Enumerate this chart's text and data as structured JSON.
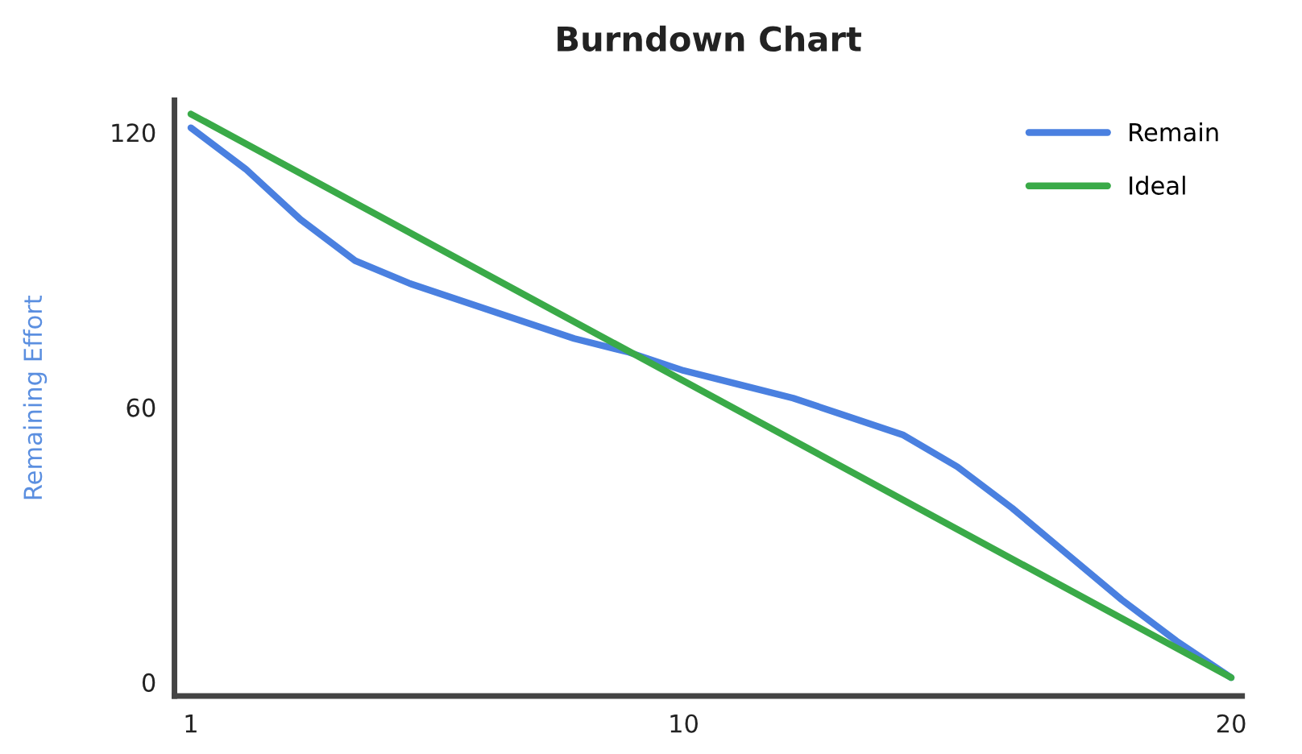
{
  "chart_data": {
    "type": "line",
    "title": "Burndown Chart",
    "ylabel": "Remaining Effort",
    "x": [
      1,
      2,
      3,
      4,
      5,
      6,
      7,
      8,
      9,
      10,
      11,
      12,
      13,
      14,
      15,
      16,
      17,
      18,
      19,
      20
    ],
    "series": [
      {
        "name": "Remain",
        "color": "#4a80e0",
        "values": [
          121,
          112,
          101,
          92,
          87,
          83,
          79,
          75,
          72,
          68,
          65,
          62,
          58,
          54,
          47,
          38,
          28,
          18,
          9,
          1
        ]
      },
      {
        "name": "Ideal",
        "color": "#3aaa48",
        "x": [
          1,
          20
        ],
        "values": [
          124,
          1
        ]
      }
    ],
    "xlim": [
      0.7,
      20.2
    ],
    "ylim": [
      -3,
      127
    ],
    "xticks": [
      1,
      10,
      20
    ],
    "yticks": [
      0,
      60,
      120
    ],
    "grid": false,
    "legend": "top right",
    "marker": "none",
    "line_style": "solid"
  }
}
